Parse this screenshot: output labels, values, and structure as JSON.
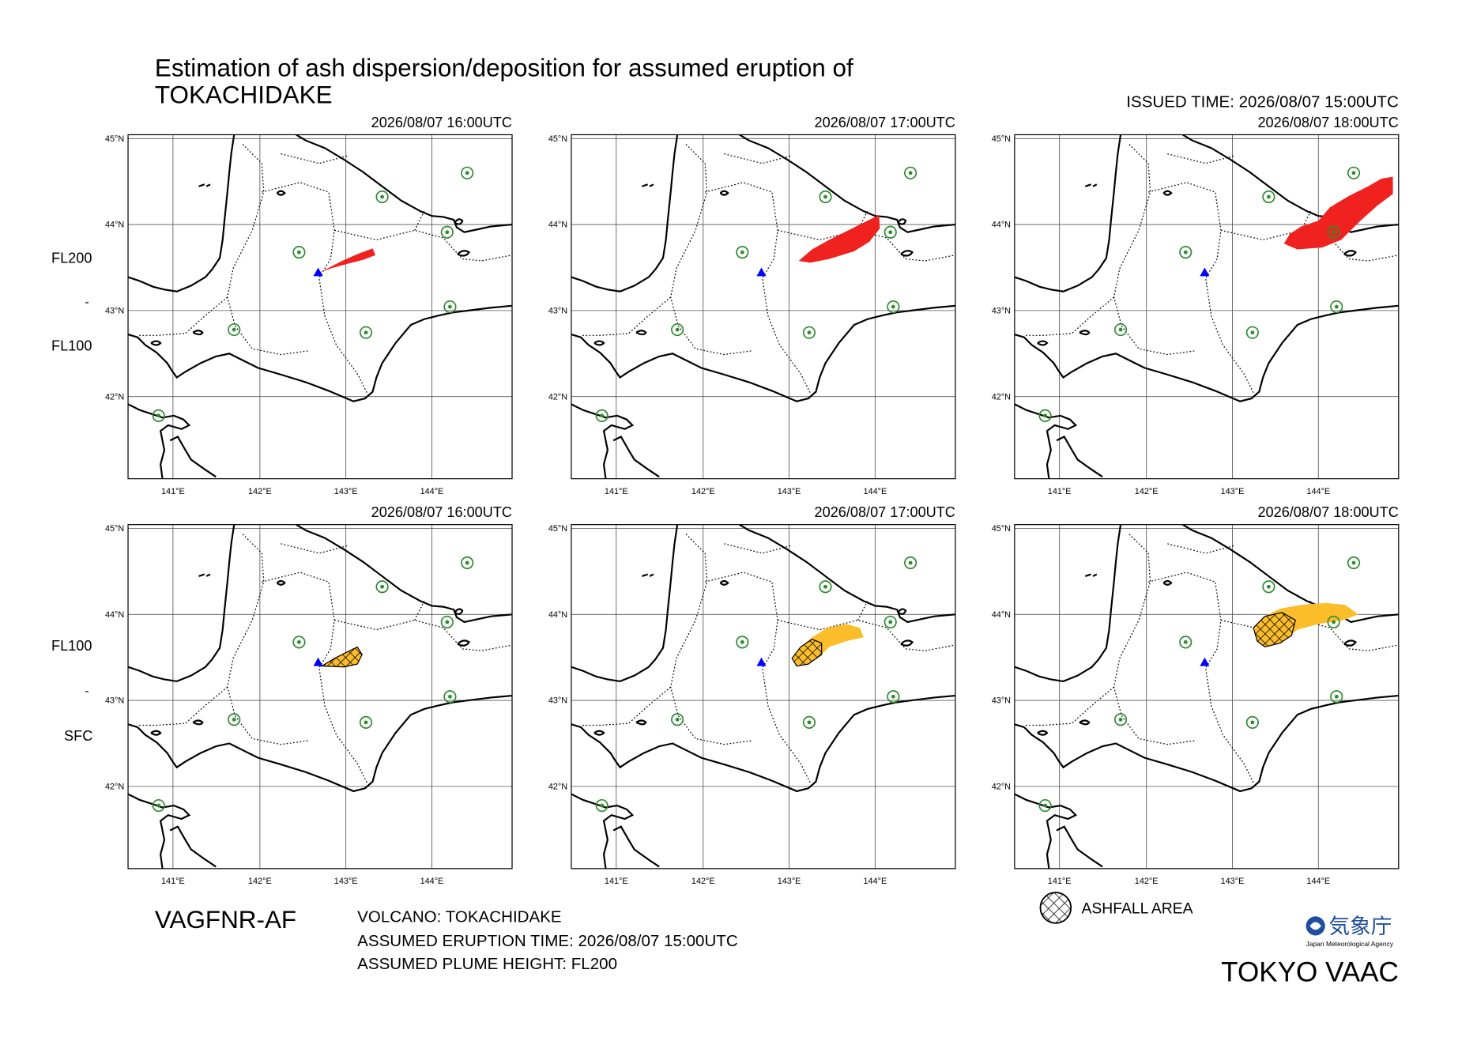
{
  "header": {
    "title_line1": "Estimation of ash dispersion/deposition for assumed eruption of",
    "title_line2": "TOKACHIDAKE",
    "issued_time": "ISSUED TIME: 2026/08/07 15:00UTC"
  },
  "panels": [
    {
      "time": "2026/08/07 16:00UTC"
    },
    {
      "time": "2026/08/07 17:00UTC"
    },
    {
      "time": "2026/08/07 18:00UTC"
    },
    {
      "time": "2026/08/07 16:00UTC"
    },
    {
      "time": "2026/08/07 17:00UTC"
    },
    {
      "time": "2026/08/07 18:00UTC"
    }
  ],
  "rows": [
    {
      "upper": "FL200",
      "separator": "-",
      "lower": "FL100"
    },
    {
      "upper": "FL100",
      "separator": "-",
      "lower": "SFC"
    }
  ],
  "axes": {
    "lat_labels": [
      "45°N",
      "44°N",
      "43°N",
      "42°N"
    ],
    "lon_labels": [
      "141°E",
      "142°E",
      "143°E",
      "144°E"
    ]
  },
  "footer": {
    "product": "VAGFNR-AF",
    "volcano": "VOLCANO: TOKACHIDAKE",
    "eruption_time": "ASSUMED ERUPTION TIME: 2026/08/07 15:00UTC",
    "plume_height": "ASSUMED PLUME HEIGHT: FL200",
    "legend": "ASHFALL AREA",
    "agency_name": "気象庁",
    "agency_name_en": "Japan Meteorological Agency",
    "center": "TOKYO VAAC"
  }
}
